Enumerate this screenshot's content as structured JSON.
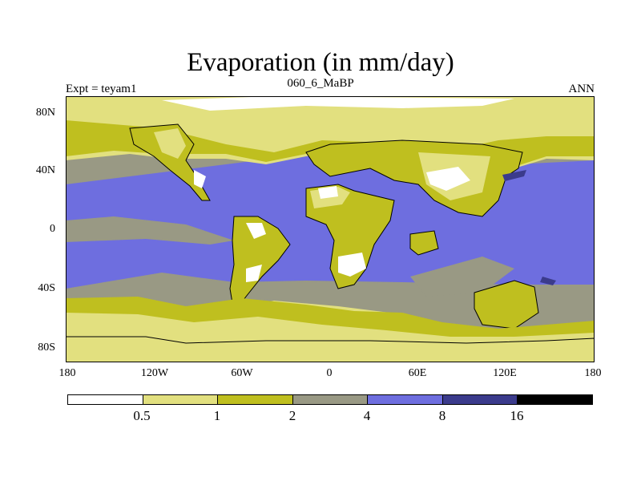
{
  "title": "Evaporation (in mm/day)",
  "left_label": "Expt = teyam1",
  "center_label": "060_6_MaBP",
  "right_label": "ANN",
  "lat_ticks": [
    "80N",
    "40N",
    "0",
    "40S",
    "80S"
  ],
  "lon_ticks": [
    "180",
    "120W",
    "60W",
    "0",
    "60E",
    "120E",
    "180"
  ],
  "colorbar": {
    "colors": [
      "#ffffff",
      "#e2e07f",
      "#bfbf1f",
      "#999984",
      "#6e6edf",
      "#3b3b8c",
      "#000000"
    ],
    "labels": [
      "0.5",
      "1",
      "2",
      "4",
      "8",
      "16"
    ]
  }
}
